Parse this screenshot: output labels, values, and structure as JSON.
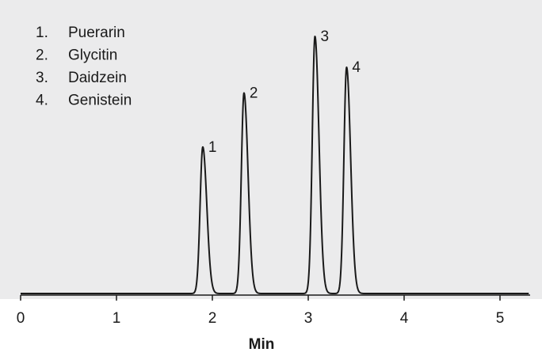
{
  "chart_data": {
    "type": "line",
    "title": "",
    "xlabel": "Min",
    "ylabel": "",
    "xlim": [
      0,
      5.3
    ],
    "ylim": [
      0,
      1
    ],
    "x_ticks": [
      "0",
      "1",
      "2",
      "3",
      "4",
      "5"
    ],
    "grid": false,
    "legend": {
      "placement": "top-left",
      "entries": [
        {
          "num": "1.",
          "name": "Puerarin"
        },
        {
          "num": "2.",
          "name": "Glycitin"
        },
        {
          "num": "3.",
          "name": "Daidzein"
        },
        {
          "num": "4.",
          "name": "Genistein"
        }
      ]
    },
    "peaks": [
      {
        "label": "1",
        "name": "Puerarin",
        "retention_min": 1.9,
        "relative_height": 0.57
      },
      {
        "label": "2",
        "name": "Glycitin",
        "retention_min": 2.33,
        "relative_height": 0.78
      },
      {
        "label": "3",
        "name": "Daidzein",
        "retention_min": 3.07,
        "relative_height": 1.0
      },
      {
        "label": "4",
        "name": "Genistein",
        "retention_min": 3.4,
        "relative_height": 0.88
      }
    ],
    "colors": {
      "trace": "#1a1a1a",
      "background": "#ebebec"
    }
  }
}
